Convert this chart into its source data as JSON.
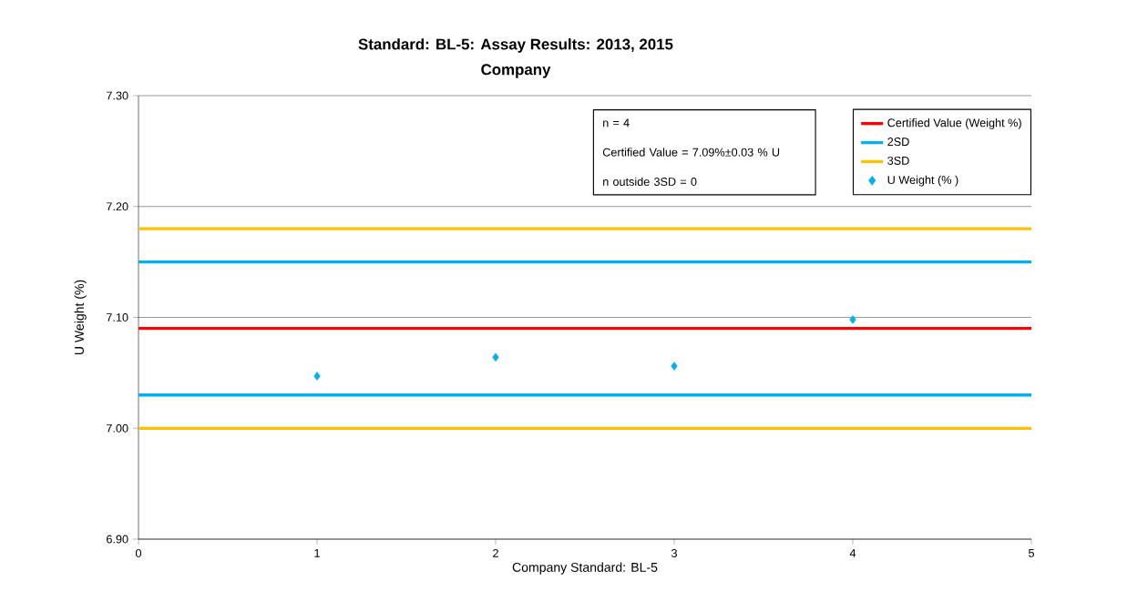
{
  "chart_data": {
    "type": "scatter",
    "title": "Standard: BL-5: Assay Results: 2013, 2015",
    "subtitle": "Company",
    "xlabel": "Company Standard: BL-5",
    "ylabel": "U Weight (%)",
    "x": [
      1,
      2,
      3,
      4
    ],
    "series": [
      {
        "name": "U Weight (% )",
        "color": "#00b0f0",
        "values": [
          7.047,
          7.064,
          7.056,
          7.098
        ]
      }
    ],
    "ref_lines": [
      {
        "axis": "y",
        "value": 7.09,
        "label": "Certified Value (Weight %)",
        "color": "#ff0000"
      },
      {
        "axis": "y",
        "value": 7.15,
        "label": "2SD",
        "color": "#00b0f0"
      },
      {
        "axis": "y",
        "value": 7.03,
        "label": null,
        "color": "#00b0f0"
      },
      {
        "axis": "y",
        "value": 7.18,
        "label": "3SD",
        "color": "#ffc000"
      },
      {
        "axis": "y",
        "value": 7.0,
        "label": null,
        "color": "#ffc000"
      }
    ],
    "annotations": [
      "n = 4",
      "Certified Value = 7.09%±0.03 % U",
      "n outside 3SD = 0"
    ],
    "xlim": [
      0,
      5
    ],
    "xticks": [
      0,
      1,
      2,
      3,
      4,
      5
    ],
    "ylim": [
      6.9,
      7.3
    ],
    "yticks": [
      {
        "value": 6.9,
        "label": "6.90"
      },
      {
        "value": 7.0,
        "label": "7.00"
      },
      {
        "value": 7.1,
        "label": "7.10"
      },
      {
        "value": 7.2,
        "label": "7.20"
      },
      {
        "value": 7.3,
        "label": "7.30"
      }
    ],
    "grid": "y",
    "legend": "top right",
    "marker": "diamond"
  }
}
